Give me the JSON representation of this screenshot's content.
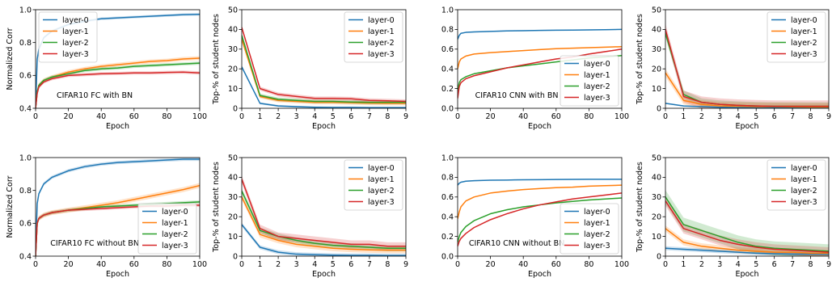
{
  "colors": {
    "layer-0": "#1f77b4",
    "layer-1": "#ff7f0e",
    "layer-2": "#2ca02c",
    "layer-3": "#d62728"
  },
  "chart_data": [
    {
      "type": "line",
      "title": "",
      "annotation": "CIFAR10 FC with BN",
      "xlabel": "Epoch",
      "ylabel": "Normalized Corr",
      "xlim": [
        0,
        100
      ],
      "ylim": [
        0.4,
        1.0
      ],
      "xticks": [
        0,
        20,
        40,
        60,
        80,
        100
      ],
      "yticks": [
        0.4,
        0.6,
        0.8,
        1.0
      ],
      "yticklabels": [
        "0.4",
        "0.6",
        "0.8",
        "1.0"
      ],
      "legend": "top-left",
      "grid": false,
      "x": [
        0,
        1,
        2,
        5,
        10,
        20,
        30,
        40,
        50,
        60,
        70,
        80,
        90,
        100
      ],
      "series": [
        {
          "name": "layer-0",
          "values": [
            0.4,
            0.7,
            0.76,
            0.83,
            0.87,
            0.91,
            0.93,
            0.945,
            0.95,
            0.955,
            0.96,
            0.965,
            0.97,
            0.972
          ],
          "band": 0.008
        },
        {
          "name": "layer-1",
          "values": [
            0.4,
            0.5,
            0.54,
            0.57,
            0.59,
            0.62,
            0.64,
            0.655,
            0.665,
            0.675,
            0.685,
            0.69,
            0.7,
            0.705
          ],
          "band": 0.012
        },
        {
          "name": "layer-2",
          "values": [
            0.4,
            0.5,
            0.54,
            0.57,
            0.59,
            0.61,
            0.63,
            0.64,
            0.645,
            0.655,
            0.66,
            0.665,
            0.67,
            0.675
          ],
          "band": 0.01
        },
        {
          "name": "layer-3",
          "values": [
            0.4,
            0.49,
            0.53,
            0.56,
            0.58,
            0.6,
            0.605,
            0.61,
            0.612,
            0.615,
            0.615,
            0.618,
            0.62,
            0.615
          ],
          "band": 0.01
        }
      ]
    },
    {
      "type": "line",
      "title": "",
      "annotation": "",
      "xlabel": "Epoch",
      "ylabel": "Top-% of student nodes",
      "xlim": [
        0,
        9
      ],
      "ylim": [
        0,
        50
      ],
      "xticks": [
        0,
        1,
        2,
        3,
        4,
        5,
        6,
        7,
        8,
        9
      ],
      "yticks": [
        0,
        10,
        20,
        30,
        40,
        50
      ],
      "yticklabels": [
        "0",
        "10",
        "20",
        "30",
        "40",
        "50"
      ],
      "legend": "top-right",
      "grid": false,
      "x": [
        0,
        1,
        2,
        3,
        4,
        5,
        6,
        7,
        8,
        9
      ],
      "series": [
        {
          "name": "layer-0",
          "values": [
            21,
            2.5,
            1.2,
            0.8,
            0.5,
            0.4,
            0.4,
            0.3,
            0.3,
            0.3
          ],
          "band": 0.5
        },
        {
          "name": "layer-1",
          "values": [
            35,
            6,
            4,
            3.5,
            3,
            3,
            2.8,
            2.6,
            2.5,
            2.5
          ],
          "band": 1.0
        },
        {
          "name": "layer-2",
          "values": [
            37,
            6.5,
            4.5,
            4,
            3.5,
            3.5,
            3.2,
            3,
            3,
            3
          ],
          "band": 1.0
        },
        {
          "name": "layer-3",
          "values": [
            41,
            10,
            7,
            6,
            5,
            5,
            4.8,
            4,
            3.8,
            3.5
          ],
          "band": 1.0
        }
      ]
    },
    {
      "type": "line",
      "title": "",
      "annotation": "CIFAR10 CNN with BN",
      "xlabel": "Epoch",
      "ylabel": "",
      "xlim": [
        0,
        100
      ],
      "ylim": [
        0.0,
        1.0
      ],
      "xticks": [
        0,
        20,
        40,
        60,
        80,
        100
      ],
      "yticks": [
        0.0,
        0.2,
        0.4,
        0.6,
        0.8,
        1.0
      ],
      "yticklabels": [
        "0.0",
        "0.2",
        "0.4",
        "0.6",
        "0.8",
        "1.0"
      ],
      "legend": "bottom-right",
      "grid": false,
      "x": [
        0,
        1,
        2,
        5,
        10,
        20,
        30,
        40,
        50,
        60,
        70,
        80,
        90,
        100
      ],
      "series": [
        {
          "name": "layer-0",
          "values": [
            0.7,
            0.74,
            0.76,
            0.77,
            0.775,
            0.78,
            0.785,
            0.787,
            0.79,
            0.792,
            0.793,
            0.795,
            0.797,
            0.8
          ],
          "band": 0.005
        },
        {
          "name": "layer-1",
          "values": [
            0.4,
            0.47,
            0.5,
            0.53,
            0.55,
            0.565,
            0.575,
            0.585,
            0.595,
            0.605,
            0.61,
            0.615,
            0.62,
            0.625
          ],
          "band": 0.005
        },
        {
          "name": "layer-2",
          "values": [
            0.18,
            0.26,
            0.29,
            0.32,
            0.35,
            0.38,
            0.41,
            0.43,
            0.45,
            0.47,
            0.49,
            0.51,
            0.52,
            0.535
          ],
          "band": 0.005
        },
        {
          "name": "layer-3",
          "values": [
            0.1,
            0.22,
            0.26,
            0.3,
            0.33,
            0.37,
            0.41,
            0.44,
            0.47,
            0.5,
            0.52,
            0.55,
            0.575,
            0.6
          ],
          "band": 0.006
        }
      ]
    },
    {
      "type": "line",
      "title": "",
      "annotation": "",
      "xlabel": "Epoch",
      "ylabel": "Top-% of student nodes",
      "xlim": [
        0,
        9
      ],
      "ylim": [
        0,
        50
      ],
      "xticks": [
        0,
        1,
        2,
        3,
        4,
        5,
        6,
        7,
        8,
        9
      ],
      "yticks": [
        0,
        10,
        20,
        30,
        40,
        50
      ],
      "yticklabels": [
        "0",
        "10",
        "20",
        "30",
        "40",
        "50"
      ],
      "legend": "top-right",
      "grid": false,
      "x": [
        0,
        1,
        2,
        3,
        4,
        5,
        6,
        7,
        8,
        9
      ],
      "series": [
        {
          "name": "layer-0",
          "values": [
            2.5,
            1.2,
            0.8,
            0.5,
            0.4,
            0.3,
            0.3,
            0.3,
            0.2,
            0.2
          ],
          "band": 0.3
        },
        {
          "name": "layer-1",
          "values": [
            18,
            4,
            2,
            1.2,
            1,
            0.8,
            0.8,
            0.7,
            0.6,
            0.6
          ],
          "band": 2
        },
        {
          "name": "layer-2",
          "values": [
            38,
            7,
            3,
            2,
            1.5,
            1.2,
            1,
            1,
            1,
            1
          ],
          "band": 2
        },
        {
          "name": "layer-3",
          "values": [
            40,
            6,
            3,
            2,
            1.5,
            1.2,
            1,
            1,
            1,
            1
          ],
          "band": 3
        }
      ]
    },
    {
      "type": "line",
      "title": "",
      "annotation": "CIFAR10 FC without BN",
      "xlabel": "Epoch",
      "ylabel": "Normalized Corr",
      "xlim": [
        0,
        100
      ],
      "ylim": [
        0.4,
        1.0
      ],
      "xticks": [
        0,
        20,
        40,
        60,
        80,
        100
      ],
      "yticks": [
        0.4,
        0.6,
        0.8,
        1.0
      ],
      "yticklabels": [
        "0.4",
        "0.6",
        "0.8",
        "1.0"
      ],
      "legend": "bottom-right",
      "grid": false,
      "x": [
        0,
        1,
        2,
        5,
        10,
        20,
        30,
        40,
        50,
        60,
        70,
        80,
        90,
        100
      ],
      "series": [
        {
          "name": "layer-0",
          "values": [
            0.4,
            0.72,
            0.78,
            0.84,
            0.88,
            0.92,
            0.945,
            0.96,
            0.97,
            0.975,
            0.98,
            0.985,
            0.99,
            0.99
          ],
          "band": 0.01
        },
        {
          "name": "layer-1",
          "values": [
            0.4,
            0.6,
            0.63,
            0.65,
            0.665,
            0.68,
            0.695,
            0.71,
            0.725,
            0.745,
            0.765,
            0.785,
            0.805,
            0.83
          ],
          "band": 0.015
        },
        {
          "name": "layer-2",
          "values": [
            0.4,
            0.6,
            0.63,
            0.65,
            0.665,
            0.68,
            0.69,
            0.7,
            0.705,
            0.71,
            0.715,
            0.72,
            0.725,
            0.73
          ],
          "band": 0.01
        },
        {
          "name": "layer-3",
          "values": [
            0.4,
            0.6,
            0.63,
            0.65,
            0.665,
            0.68,
            0.685,
            0.69,
            0.695,
            0.7,
            0.705,
            0.705,
            0.71,
            0.71
          ],
          "band": 0.01
        }
      ]
    },
    {
      "type": "line",
      "title": "",
      "annotation": "",
      "xlabel": "Epoch",
      "ylabel": "Top-% of student nodes",
      "xlim": [
        0,
        9
      ],
      "ylim": [
        0,
        50
      ],
      "xticks": [
        0,
        1,
        2,
        3,
        4,
        5,
        6,
        7,
        8,
        9
      ],
      "yticks": [
        0,
        10,
        20,
        30,
        40,
        50
      ],
      "yticklabels": [
        "0",
        "10",
        "20",
        "30",
        "40",
        "50"
      ],
      "legend": "top-right",
      "grid": false,
      "x": [
        0,
        1,
        2,
        3,
        4,
        5,
        6,
        7,
        8,
        9
      ],
      "series": [
        {
          "name": "layer-0",
          "values": [
            16,
            4.5,
            2,
            1,
            0.7,
            0.5,
            0.4,
            0.4,
            0.3,
            0.3
          ],
          "band": 1.0
        },
        {
          "name": "layer-1",
          "values": [
            30,
            11,
            8,
            6,
            5,
            4,
            3.5,
            3.2,
            3,
            3
          ],
          "band": 1.5
        },
        {
          "name": "layer-2",
          "values": [
            33,
            13,
            10,
            8,
            6.5,
            5.5,
            5,
            4.5,
            4,
            4
          ],
          "band": 1.5
        },
        {
          "name": "layer-3",
          "values": [
            39,
            14,
            10,
            9,
            8,
            7,
            6,
            6,
            5,
            5
          ],
          "band": 2.0
        }
      ]
    },
    {
      "type": "line",
      "title": "",
      "annotation": "CIFAR10 CNN without BN",
      "xlabel": "Epoch",
      "ylabel": "",
      "xlim": [
        0,
        100
      ],
      "ylim": [
        0.0,
        1.0
      ],
      "xticks": [
        0,
        20,
        40,
        60,
        80,
        100
      ],
      "yticks": [
        0.0,
        0.2,
        0.4,
        0.6,
        0.8,
        1.0
      ],
      "yticklabels": [
        "0.0",
        "0.2",
        "0.4",
        "0.6",
        "0.8",
        "1.0"
      ],
      "legend": "bottom-right",
      "grid": false,
      "x": [
        0,
        1,
        2,
        5,
        10,
        20,
        30,
        40,
        50,
        60,
        70,
        80,
        90,
        100
      ],
      "series": [
        {
          "name": "layer-0",
          "values": [
            0.72,
            0.74,
            0.75,
            0.76,
            0.765,
            0.77,
            0.772,
            0.775,
            0.776,
            0.778,
            0.779,
            0.78,
            0.78,
            0.78
          ],
          "band": 0.005
        },
        {
          "name": "layer-1",
          "values": [
            0.38,
            0.45,
            0.5,
            0.56,
            0.6,
            0.64,
            0.66,
            0.675,
            0.685,
            0.695,
            0.7,
            0.71,
            0.715,
            0.72
          ],
          "band": 0.005
        },
        {
          "name": "layer-2",
          "values": [
            0.14,
            0.2,
            0.24,
            0.3,
            0.36,
            0.43,
            0.47,
            0.5,
            0.52,
            0.54,
            0.555,
            0.57,
            0.58,
            0.59
          ],
          "band": 0.005
        },
        {
          "name": "layer-3",
          "values": [
            0.1,
            0.15,
            0.18,
            0.23,
            0.29,
            0.37,
            0.43,
            0.48,
            0.52,
            0.55,
            0.58,
            0.6,
            0.62,
            0.64
          ],
          "band": 0.006
        }
      ]
    },
    {
      "type": "line",
      "title": "",
      "annotation": "",
      "xlabel": "Epoch",
      "ylabel": "Top-% of student nodes",
      "xlim": [
        0,
        9
      ],
      "ylim": [
        0,
        50
      ],
      "xticks": [
        0,
        1,
        2,
        3,
        4,
        5,
        6,
        7,
        8,
        9
      ],
      "yticks": [
        0,
        10,
        20,
        30,
        40,
        50
      ],
      "yticklabels": [
        "0",
        "10",
        "20",
        "30",
        "40",
        "50"
      ],
      "legend": "top-right",
      "grid": false,
      "x": [
        0,
        1,
        2,
        3,
        4,
        5,
        6,
        7,
        8,
        9
      ],
      "series": [
        {
          "name": "layer-0",
          "values": [
            4,
            3.5,
            3,
            2.5,
            2,
            1.5,
            1.2,
            1,
            1,
            1
          ],
          "band": 1.0
        },
        {
          "name": "layer-1",
          "values": [
            14,
            7,
            5,
            4,
            3,
            2.5,
            2,
            2,
            1.5,
            1.5
          ],
          "band": 1.5
        },
        {
          "name": "layer-2",
          "values": [
            30,
            16,
            13,
            10,
            7,
            5,
            4,
            3.5,
            3,
            2.5
          ],
          "band": 3.5
        },
        {
          "name": "layer-3",
          "values": [
            28,
            14,
            11,
            8,
            6,
            4.5,
            3.5,
            3,
            2.5,
            2
          ],
          "band": 2.5
        }
      ]
    }
  ]
}
